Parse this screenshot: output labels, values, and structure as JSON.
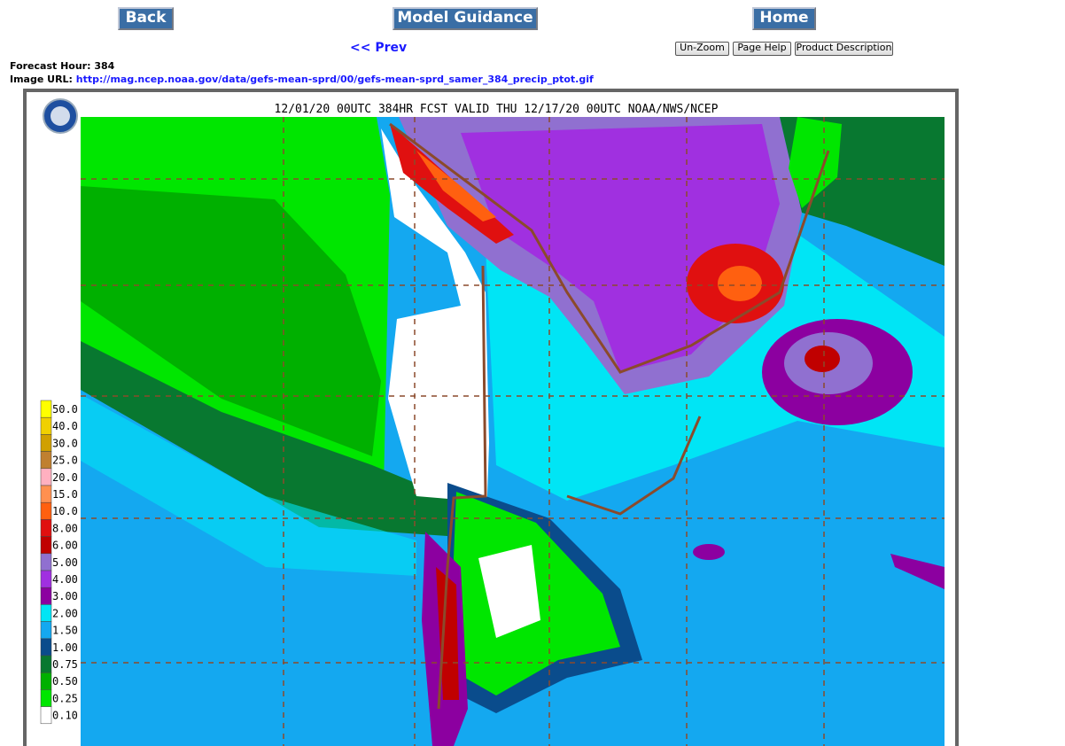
{
  "nav": {
    "back": "Back",
    "model_guidance": "Model Guidance",
    "home": "Home",
    "prev": "<< Prev",
    "un_zoom": "Un-Zoom",
    "page_help": "Page Help",
    "product_description": "Product Description"
  },
  "info": {
    "forecast_hour_label": "Forecast Hour:",
    "forecast_hour": "384",
    "image_url_label": "Image URL:",
    "image_url": "http://mag.ncep.noaa.gov/data/gefs-mean-sprd/00/gefs-mean-sprd_samer_384_precip_ptot.gif"
  },
  "map": {
    "title": "12/01/20 00UTC 384HR FCST VALID THU 12/17/20 00UTC NOAA/NWS/NCEP",
    "legend": [
      {
        "label": "50.0",
        "color": "#ffff00"
      },
      {
        "label": "40.0",
        "color": "#f0d000"
      },
      {
        "label": "30.0",
        "color": "#d0a000"
      },
      {
        "label": "25.0",
        "color": "#c08030"
      },
      {
        "label": "20.0",
        "color": "#ffb0c0"
      },
      {
        "label": "15.0",
        "color": "#ff9050"
      },
      {
        "label": "10.0",
        "color": "#ff6010"
      },
      {
        "label": "8.00",
        "color": "#e01010"
      },
      {
        "label": "6.00",
        "color": "#c00000"
      },
      {
        "label": "5.00",
        "color": "#9070d0"
      },
      {
        "label": "4.00",
        "color": "#a030e0"
      },
      {
        "label": "3.00",
        "color": "#8c00a0"
      },
      {
        "label": "2.00",
        "color": "#00e5f5"
      },
      {
        "label": "1.50",
        "color": "#14a8f0"
      },
      {
        "label": "1.00",
        "color": "#0a4c8c"
      },
      {
        "label": "0.75",
        "color": "#087830"
      },
      {
        "label": "0.50",
        "color": "#00b000"
      },
      {
        "label": "0.25",
        "color": "#00e600"
      },
      {
        "label": "0.10",
        "color": "#ffffff"
      }
    ]
  }
}
